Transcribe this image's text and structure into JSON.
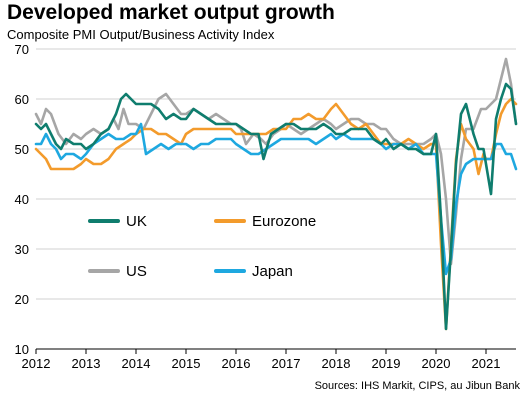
{
  "title": "Developed market output growth",
  "subtitle": "Composite PMI Output/Business  Activity Index",
  "source": "Sources: IHS Markit, CIPS, au Jibun Bank",
  "chart_data": {
    "type": "line",
    "xlabel": "",
    "ylabel": "",
    "xlim": [
      2012,
      2021.6
    ],
    "ylim": [
      10,
      70
    ],
    "yticks": [
      10,
      20,
      30,
      40,
      50,
      60,
      70
    ],
    "xticks": [
      "2012",
      "2013",
      "2014",
      "2015",
      "2016",
      "2017",
      "2018",
      "2019",
      "2020",
      "2021"
    ],
    "grid": "horizontal",
    "legend_position": "inside-lower-left",
    "series": [
      {
        "name": "US",
        "color": "#a6a6a6",
        "points": [
          [
            2012.0,
            57
          ],
          [
            2012.1,
            55
          ],
          [
            2012.2,
            58
          ],
          [
            2012.3,
            57
          ],
          [
            2012.45,
            53
          ],
          [
            2012.6,
            51
          ],
          [
            2012.75,
            53
          ],
          [
            2012.9,
            52
          ],
          [
            2013.0,
            53
          ],
          [
            2013.15,
            54
          ],
          [
            2013.3,
            53
          ],
          [
            2013.45,
            54
          ],
          [
            2013.55,
            56
          ],
          [
            2013.65,
            54
          ],
          [
            2013.75,
            58
          ],
          [
            2013.85,
            55
          ],
          [
            2014.0,
            55
          ],
          [
            2014.15,
            54
          ],
          [
            2014.3,
            57
          ],
          [
            2014.45,
            60
          ],
          [
            2014.6,
            61
          ],
          [
            2014.75,
            59
          ],
          [
            2014.9,
            57
          ],
          [
            2015.0,
            57
          ],
          [
            2015.15,
            58
          ],
          [
            2015.3,
            57
          ],
          [
            2015.45,
            56
          ],
          [
            2015.6,
            57
          ],
          [
            2015.75,
            56
          ],
          [
            2015.9,
            55
          ],
          [
            2016.0,
            55
          ],
          [
            2016.1,
            54
          ],
          [
            2016.2,
            51
          ],
          [
            2016.35,
            53
          ],
          [
            2016.5,
            52
          ],
          [
            2016.6,
            51
          ],
          [
            2016.75,
            53
          ],
          [
            2016.9,
            54
          ],
          [
            2017.0,
            55
          ],
          [
            2017.15,
            54
          ],
          [
            2017.3,
            53
          ],
          [
            2017.45,
            54
          ],
          [
            2017.6,
            55
          ],
          [
            2017.75,
            56
          ],
          [
            2017.9,
            55
          ],
          [
            2018.0,
            54
          ],
          [
            2018.15,
            55
          ],
          [
            2018.3,
            56
          ],
          [
            2018.45,
            56
          ],
          [
            2018.6,
            55
          ],
          [
            2018.75,
            55
          ],
          [
            2018.9,
            54
          ],
          [
            2019.0,
            54
          ],
          [
            2019.15,
            52
          ],
          [
            2019.3,
            51
          ],
          [
            2019.45,
            51
          ],
          [
            2019.6,
            51
          ],
          [
            2019.75,
            51
          ],
          [
            2019.9,
            52
          ],
          [
            2020.0,
            53
          ],
          [
            2020.1,
            49
          ],
          [
            2020.2,
            40
          ],
          [
            2020.3,
            27
          ],
          [
            2020.4,
            37
          ],
          [
            2020.5,
            48
          ],
          [
            2020.6,
            54
          ],
          [
            2020.75,
            54
          ],
          [
            2020.9,
            58
          ],
          [
            2021.0,
            58
          ],
          [
            2021.1,
            59
          ],
          [
            2021.2,
            60
          ],
          [
            2021.3,
            64
          ],
          [
            2021.4,
            68
          ],
          [
            2021.5,
            63
          ],
          [
            2021.6,
            55
          ]
        ]
      },
      {
        "name": "Eurozone",
        "color": "#f39b2c",
        "points": [
          [
            2012.0,
            50
          ],
          [
            2012.1,
            49
          ],
          [
            2012.2,
            48
          ],
          [
            2012.3,
            46
          ],
          [
            2012.45,
            46
          ],
          [
            2012.6,
            46
          ],
          [
            2012.75,
            46
          ],
          [
            2012.9,
            47
          ],
          [
            2013.0,
            48
          ],
          [
            2013.15,
            47
          ],
          [
            2013.3,
            47
          ],
          [
            2013.45,
            48
          ],
          [
            2013.6,
            50
          ],
          [
            2013.75,
            51
          ],
          [
            2013.9,
            52
          ],
          [
            2014.0,
            53
          ],
          [
            2014.15,
            54
          ],
          [
            2014.3,
            54
          ],
          [
            2014.45,
            53
          ],
          [
            2014.6,
            53
          ],
          [
            2014.75,
            52
          ],
          [
            2014.9,
            51
          ],
          [
            2015.0,
            53
          ],
          [
            2015.15,
            54
          ],
          [
            2015.3,
            54
          ],
          [
            2015.45,
            54
          ],
          [
            2015.6,
            54
          ],
          [
            2015.75,
            54
          ],
          [
            2015.9,
            54
          ],
          [
            2016.0,
            53
          ],
          [
            2016.15,
            53
          ],
          [
            2016.3,
            53
          ],
          [
            2016.45,
            53
          ],
          [
            2016.6,
            53
          ],
          [
            2016.75,
            54
          ],
          [
            2016.9,
            54
          ],
          [
            2017.0,
            54
          ],
          [
            2017.15,
            56
          ],
          [
            2017.3,
            56
          ],
          [
            2017.45,
            57
          ],
          [
            2017.6,
            56
          ],
          [
            2017.75,
            56
          ],
          [
            2017.9,
            58
          ],
          [
            2018.0,
            59
          ],
          [
            2018.15,
            57
          ],
          [
            2018.3,
            55
          ],
          [
            2018.45,
            54
          ],
          [
            2018.6,
            55
          ],
          [
            2018.75,
            53
          ],
          [
            2018.9,
            51
          ],
          [
            2019.0,
            51
          ],
          [
            2019.15,
            51
          ],
          [
            2019.3,
            51
          ],
          [
            2019.45,
            52
          ],
          [
            2019.6,
            51
          ],
          [
            2019.75,
            50
          ],
          [
            2019.9,
            51
          ],
          [
            2020.0,
            51
          ],
          [
            2020.1,
            31
          ],
          [
            2020.2,
            14
          ],
          [
            2020.3,
            31
          ],
          [
            2020.4,
            48
          ],
          [
            2020.5,
            55
          ],
          [
            2020.6,
            52
          ],
          [
            2020.75,
            50
          ],
          [
            2020.85,
            45
          ],
          [
            2020.95,
            49
          ],
          [
            2021.0,
            48
          ],
          [
            2021.1,
            48
          ],
          [
            2021.2,
            53
          ],
          [
            2021.3,
            57
          ],
          [
            2021.4,
            59
          ],
          [
            2021.5,
            60
          ],
          [
            2021.6,
            59
          ]
        ]
      },
      {
        "name": "Japan",
        "color": "#1ea8e0",
        "points": [
          [
            2012.0,
            51
          ],
          [
            2012.1,
            51
          ],
          [
            2012.2,
            53
          ],
          [
            2012.3,
            51
          ],
          [
            2012.4,
            50
          ],
          [
            2012.5,
            48
          ],
          [
            2012.6,
            49
          ],
          [
            2012.75,
            49
          ],
          [
            2012.9,
            48
          ],
          [
            2013.0,
            49
          ],
          [
            2013.15,
            51
          ],
          [
            2013.3,
            52
          ],
          [
            2013.45,
            53
          ],
          [
            2013.6,
            52
          ],
          [
            2013.75,
            52
          ],
          [
            2013.9,
            53
          ],
          [
            2014.0,
            53
          ],
          [
            2014.1,
            55
          ],
          [
            2014.2,
            49
          ],
          [
            2014.35,
            50
          ],
          [
            2014.5,
            51
          ],
          [
            2014.65,
            50
          ],
          [
            2014.8,
            51
          ],
          [
            2014.9,
            51
          ],
          [
            2015.0,
            51
          ],
          [
            2015.15,
            50
          ],
          [
            2015.3,
            51
          ],
          [
            2015.45,
            51
          ],
          [
            2015.6,
            52
          ],
          [
            2015.75,
            52
          ],
          [
            2015.9,
            52
          ],
          [
            2016.0,
            51
          ],
          [
            2016.15,
            50
          ],
          [
            2016.3,
            49
          ],
          [
            2016.45,
            49
          ],
          [
            2016.6,
            50
          ],
          [
            2016.75,
            51
          ],
          [
            2016.9,
            52
          ],
          [
            2017.0,
            52
          ],
          [
            2017.15,
            52
          ],
          [
            2017.3,
            52
          ],
          [
            2017.45,
            52
          ],
          [
            2017.6,
            51
          ],
          [
            2017.75,
            52
          ],
          [
            2017.9,
            53
          ],
          [
            2018.0,
            52
          ],
          [
            2018.15,
            53
          ],
          [
            2018.3,
            52
          ],
          [
            2018.45,
            52
          ],
          [
            2018.6,
            52
          ],
          [
            2018.75,
            52
          ],
          [
            2018.9,
            51
          ],
          [
            2019.0,
            50
          ],
          [
            2019.15,
            51
          ],
          [
            2019.3,
            51
          ],
          [
            2019.45,
            50
          ],
          [
            2019.6,
            51
          ],
          [
            2019.75,
            49
          ],
          [
            2019.9,
            49
          ],
          [
            2020.0,
            49
          ],
          [
            2020.1,
            36
          ],
          [
            2020.2,
            25
          ],
          [
            2020.3,
            28
          ],
          [
            2020.4,
            39
          ],
          [
            2020.5,
            45
          ],
          [
            2020.6,
            47
          ],
          [
            2020.75,
            48
          ],
          [
            2020.9,
            48
          ],
          [
            2021.0,
            48
          ],
          [
            2021.1,
            48
          ],
          [
            2021.2,
            51
          ],
          [
            2021.3,
            51
          ],
          [
            2021.4,
            49
          ],
          [
            2021.5,
            49
          ],
          [
            2021.6,
            46
          ]
        ]
      },
      {
        "name": "UK",
        "color": "#0f7d6e",
        "points": [
          [
            2012.0,
            55
          ],
          [
            2012.1,
            54
          ],
          [
            2012.2,
            55
          ],
          [
            2012.3,
            53
          ],
          [
            2012.4,
            51
          ],
          [
            2012.5,
            50
          ],
          [
            2012.6,
            52
          ],
          [
            2012.75,
            51
          ],
          [
            2012.9,
            51
          ],
          [
            2013.0,
            50
          ],
          [
            2013.15,
            51
          ],
          [
            2013.3,
            53
          ],
          [
            2013.45,
            54
          ],
          [
            2013.6,
            57
          ],
          [
            2013.7,
            60
          ],
          [
            2013.8,
            61
          ],
          [
            2013.9,
            60
          ],
          [
            2014.0,
            59
          ],
          [
            2014.15,
            59
          ],
          [
            2014.3,
            59
          ],
          [
            2014.45,
            58
          ],
          [
            2014.6,
            56
          ],
          [
            2014.75,
            57
          ],
          [
            2014.9,
            56
          ],
          [
            2015.0,
            56
          ],
          [
            2015.15,
            58
          ],
          [
            2015.3,
            57
          ],
          [
            2015.45,
            56
          ],
          [
            2015.6,
            55
          ],
          [
            2015.75,
            55
          ],
          [
            2015.9,
            55
          ],
          [
            2016.0,
            55
          ],
          [
            2016.15,
            54
          ],
          [
            2016.3,
            53
          ],
          [
            2016.45,
            53
          ],
          [
            2016.55,
            48
          ],
          [
            2016.7,
            53
          ],
          [
            2016.85,
            54
          ],
          [
            2017.0,
            55
          ],
          [
            2017.15,
            55
          ],
          [
            2017.3,
            54
          ],
          [
            2017.45,
            54
          ],
          [
            2017.6,
            54
          ],
          [
            2017.75,
            55
          ],
          [
            2017.9,
            54
          ],
          [
            2018.0,
            53
          ],
          [
            2018.15,
            53
          ],
          [
            2018.3,
            54
          ],
          [
            2018.45,
            54
          ],
          [
            2018.6,
            54
          ],
          [
            2018.75,
            52
          ],
          [
            2018.9,
            51
          ],
          [
            2019.0,
            52
          ],
          [
            2019.15,
            50
          ],
          [
            2019.3,
            51
          ],
          [
            2019.45,
            50
          ],
          [
            2019.6,
            50
          ],
          [
            2019.75,
            49
          ],
          [
            2019.9,
            49
          ],
          [
            2020.0,
            53
          ],
          [
            2020.1,
            36
          ],
          [
            2020.2,
            14
          ],
          [
            2020.3,
            30
          ],
          [
            2020.4,
            47
          ],
          [
            2020.5,
            57
          ],
          [
            2020.6,
            59
          ],
          [
            2020.75,
            53
          ],
          [
            2020.85,
            50
          ],
          [
            2020.95,
            50
          ],
          [
            2021.0,
            47
          ],
          [
            2021.1,
            41
          ],
          [
            2021.2,
            56
          ],
          [
            2021.3,
            60
          ],
          [
            2021.4,
            63
          ],
          [
            2021.5,
            62
          ],
          [
            2021.6,
            55
          ]
        ]
      }
    ]
  }
}
